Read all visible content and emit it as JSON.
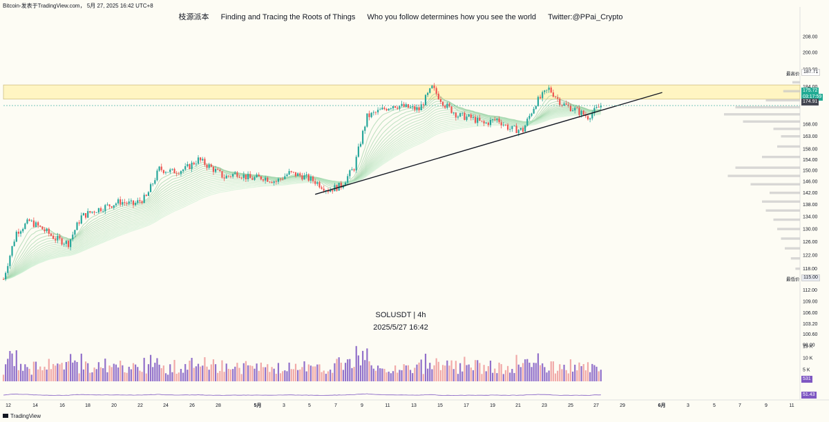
{
  "header": {
    "title": "Bitcoin-发表于TradingView.com， 5月 27, 2025 16:42 UTC+8"
  },
  "banner": {
    "logo_text": "枝源派本",
    "slogan1": "Finding and Tracing the Roots of Things",
    "slogan2": "Who you follow determines how you see the world",
    "twitter": "Twitter:@PPai_Crypto"
  },
  "watermark": {
    "symbol": "SOLUSDT | 4h",
    "datetime": "2025/5/27 16:42"
  },
  "footer": {
    "brand": "TradingView"
  },
  "price_axis": {
    "ticks": [
      "208.00",
      "200.00",
      "192.00",
      "184.00",
      "178.00",
      "168.00",
      "163.00",
      "158.00",
      "154.00",
      "150.00",
      "146.00",
      "142.00",
      "138.00",
      "134.00",
      "130.00",
      "126.00",
      "122.00",
      "118.00",
      "115.00",
      "112.00",
      "109.00",
      "106.00",
      "103.20",
      "100.60",
      "98.00"
    ],
    "high_label": "最高价",
    "high_value": "187.71",
    "low_label": "最低价",
    "low_value": "115.00",
    "last_price": "175.72",
    "countdown": "03:17:59",
    "ref_price": "174.91"
  },
  "volume_axis": {
    "ticks": [
      "15 K",
      "10 K",
      "5 K"
    ],
    "last_volume": "531"
  },
  "rsi": {
    "last_value": "51.43"
  },
  "time_axis": {
    "ticks": [
      "12",
      "14",
      "16",
      "18",
      "20",
      "22",
      "24",
      "26",
      "28",
      "5月",
      "3",
      "5",
      "7",
      "9",
      "11",
      "13",
      "15",
      "17",
      "19",
      "21",
      "23",
      "25",
      "27",
      "29",
      "6月",
      "3",
      "5",
      "7",
      "9",
      "11"
    ]
  },
  "colors": {
    "up": "#26a69a",
    "down": "#ef5350",
    "vol_up": "#7e57c2",
    "vol_down": "#ef9a9a",
    "resistance_zone": "#fff5c2",
    "last_price_bg": "#22ab94",
    "rsi_line": "#7e57c2",
    "rsi_tag": "#7e57c2",
    "low_tag": "#e8eaf0"
  },
  "chart_data": {
    "type": "candlestick",
    "symbol": "SOLUSDT",
    "interval": "4h",
    "ylim": [
      98,
      214
    ],
    "resistance_zone": [
      178.5,
      184.8
    ],
    "trendline": {
      "from": [
        "2025-05-05",
        141.5
      ],
      "to": [
        "2025-05-28",
        179.6
      ]
    },
    "close_path": [
      {
        "date": "2025-04-11",
        "close": 115.0
      },
      {
        "date": "2025-04-12",
        "close": 129.0
      },
      {
        "date": "2025-04-13",
        "close": 132.5
      },
      {
        "date": "2025-04-14",
        "close": 130.0
      },
      {
        "date": "2025-04-15",
        "close": 127.0
      },
      {
        "date": "2025-04-16",
        "close": 125.5
      },
      {
        "date": "2025-04-17",
        "close": 134.0
      },
      {
        "date": "2025-04-18",
        "close": 136.0
      },
      {
        "date": "2025-04-19",
        "close": 137.5
      },
      {
        "date": "2025-04-20",
        "close": 139.0
      },
      {
        "date": "2025-04-21",
        "close": 138.0
      },
      {
        "date": "2025-04-22",
        "close": 140.5
      },
      {
        "date": "2025-04-23",
        "close": 150.5
      },
      {
        "date": "2025-04-24",
        "close": 149.5
      },
      {
        "date": "2025-04-25",
        "close": 150.5
      },
      {
        "date": "2025-04-26",
        "close": 154.0
      },
      {
        "date": "2025-04-27",
        "close": 151.0
      },
      {
        "date": "2025-04-28",
        "close": 147.5
      },
      {
        "date": "2025-04-29",
        "close": 149.0
      },
      {
        "date": "2025-04-30",
        "close": 147.0
      },
      {
        "date": "2025-05-01",
        "close": 147.5
      },
      {
        "date": "2025-05-02",
        "close": 146.0
      },
      {
        "date": "2025-05-03",
        "close": 149.0
      },
      {
        "date": "2025-05-04",
        "close": 148.0
      },
      {
        "date": "2025-05-05",
        "close": 146.0
      },
      {
        "date": "2025-05-06",
        "close": 143.0
      },
      {
        "date": "2025-05-07",
        "close": 144.5
      },
      {
        "date": "2025-05-08",
        "close": 151.0
      },
      {
        "date": "2025-05-09",
        "close": 171.0
      },
      {
        "date": "2025-05-10",
        "close": 173.5
      },
      {
        "date": "2025-05-11",
        "close": 176.0
      },
      {
        "date": "2025-05-12",
        "close": 175.0
      },
      {
        "date": "2025-05-13",
        "close": 174.0
      },
      {
        "date": "2025-05-14",
        "close": 183.5
      },
      {
        "date": "2025-05-15",
        "close": 176.0
      },
      {
        "date": "2025-05-16",
        "close": 171.5
      },
      {
        "date": "2025-05-17",
        "close": 170.5
      },
      {
        "date": "2025-05-18",
        "close": 168.0
      },
      {
        "date": "2025-05-19",
        "close": 170.0
      },
      {
        "date": "2025-05-20",
        "close": 166.0
      },
      {
        "date": "2025-05-21",
        "close": 165.5
      },
      {
        "date": "2025-05-22",
        "close": 177.0
      },
      {
        "date": "2025-05-23",
        "close": 183.0
      },
      {
        "date": "2025-05-24",
        "close": 176.5
      },
      {
        "date": "2025-05-25",
        "close": 174.0
      },
      {
        "date": "2025-05-26",
        "close": 171.0
      },
      {
        "date": "2025-05-27",
        "close": 175.7
      }
    ],
    "volume_profile": [
      {
        "price": 186,
        "volume": 0.1
      },
      {
        "price": 182,
        "volume": 0.22
      },
      {
        "price": 178,
        "volume": 0.45
      },
      {
        "price": 175,
        "volume": 0.85
      },
      {
        "price": 172,
        "volume": 1.0
      },
      {
        "price": 169,
        "volume": 0.75
      },
      {
        "price": 166,
        "volume": 0.35
      },
      {
        "price": 163,
        "volume": 0.25
      },
      {
        "price": 159,
        "volume": 0.3
      },
      {
        "price": 155,
        "volume": 0.5
      },
      {
        "price": 151,
        "volume": 0.85
      },
      {
        "price": 148,
        "volume": 0.95
      },
      {
        "price": 145,
        "volume": 0.65
      },
      {
        "price": 142,
        "volume": 0.4
      },
      {
        "price": 139,
        "volume": 0.5
      },
      {
        "price": 136,
        "volume": 0.45
      },
      {
        "price": 133,
        "volume": 0.35
      },
      {
        "price": 130,
        "volume": 0.3
      },
      {
        "price": 127,
        "volume": 0.25
      },
      {
        "price": 124,
        "volume": 0.2
      },
      {
        "price": 121,
        "volume": 0.12
      },
      {
        "price": 118,
        "volume": 0.06
      }
    ]
  }
}
